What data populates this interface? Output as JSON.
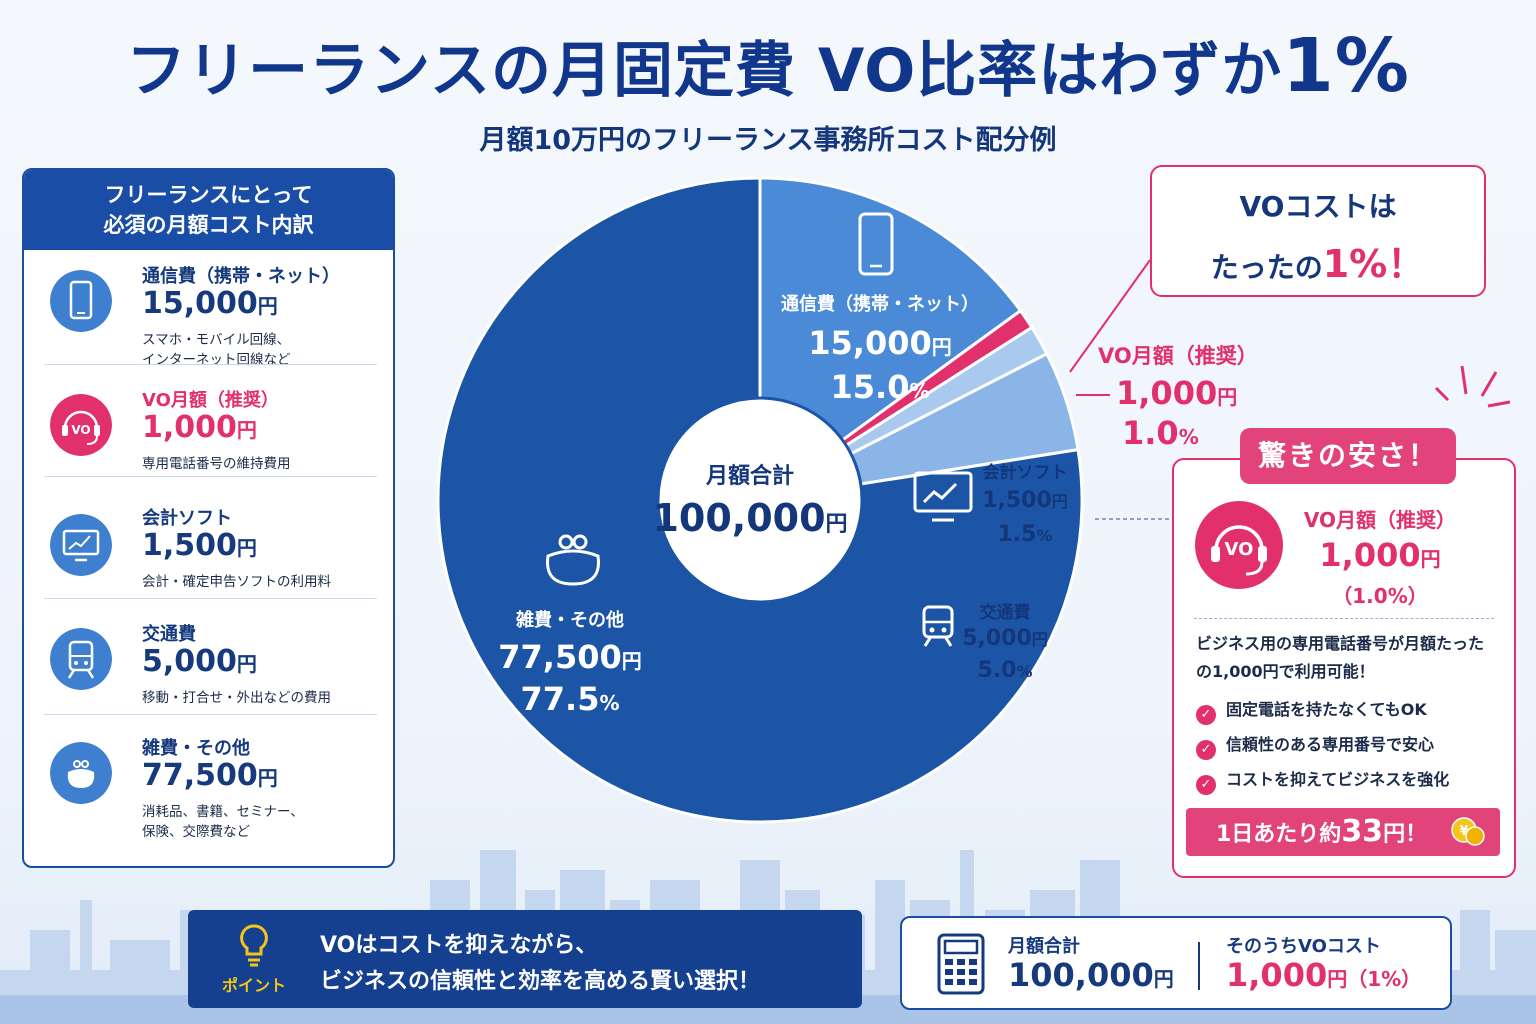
{
  "title": {
    "main": "フリーランスの月固定費 VO比率はわずか",
    "highlight": "1%"
  },
  "subtitle": "月額10万円のフリーランス事務所コスト配分例",
  "left_panel": {
    "header_line1": "フリーランスにとって",
    "header_line2": "必須の月額コスト内訳",
    "items": [
      {
        "name": "通信費（携帯・ネット）",
        "amount": "15,000",
        "unit": "円",
        "desc": "スマホ・モバイル回線、\nインターネット回線など",
        "icon": "smartphone-icon"
      },
      {
        "name": "VO月額（推奨）",
        "amount": "1,000",
        "unit": "円",
        "desc": "専用電話番号の維持費用",
        "icon": "headset-icon"
      },
      {
        "name": "会計ソフト",
        "amount": "1,500",
        "unit": "円",
        "desc": "会計・確定申告ソフトの利用料",
        "icon": "monitor-chart-icon"
      },
      {
        "name": "交通費",
        "amount": "5,000",
        "unit": "円",
        "desc": "移動・打合せ・外出などの費用",
        "icon": "train-icon"
      },
      {
        "name": "雑費・その他",
        "amount": "77,500",
        "unit": "円",
        "desc": "消耗品、書籍、セミナー、\n保険、交際費など",
        "icon": "purse-icon"
      }
    ]
  },
  "center": {
    "label": "月額合計",
    "amount": "100,000",
    "unit": "円"
  },
  "pie_labels": [
    {
      "name": "通信費（携帯・ネット）",
      "amount": "15,000",
      "unit": "円",
      "pct": "15.0",
      "pct_unit": "%"
    },
    {
      "name": "VO月額（推奨）",
      "amount": "1,000",
      "unit": "円",
      "pct": "1.0",
      "pct_unit": "%"
    },
    {
      "name": "会計ソフト",
      "amount": "1,500",
      "unit": "円",
      "pct": "1.5",
      "pct_unit": "%"
    },
    {
      "name": "交通費",
      "amount": "5,000",
      "unit": "円",
      "pct": "5.0",
      "pct_unit": "%"
    },
    {
      "name": "雑費・その他",
      "amount": "77,500",
      "unit": "円",
      "pct": "77.5",
      "pct_unit": "%"
    }
  ],
  "chart_data": {
    "type": "pie",
    "categories": [
      "通信費（携帯・ネット）",
      "VO月額（推奨）",
      "会計ソフト",
      "交通費",
      "雑費・その他"
    ],
    "values": [
      15000,
      1000,
      1500,
      5000,
      77500
    ],
    "percentages": [
      15.0,
      1.0,
      1.5,
      5.0,
      77.5
    ],
    "colors": [
      "#4a8ad6",
      "#e2306c",
      "#a9caee",
      "#8ab5e6",
      "#1c55a6"
    ],
    "title": "月額10万円のフリーランス事務所コスト配分例"
  },
  "callout": {
    "line1": "VOコストは",
    "line2_prefix": "たったの",
    "line2_pct": "1%",
    "line2_suffix": "！"
  },
  "highlight": {
    "tag": "驚きの安さ！",
    "name": "VO月額（推奨）",
    "amount": "1,000",
    "unit": "円",
    "pct": "（1.0%）",
    "desc": "ビジネス用の専用電話番号が月額たったの1,000円で利用可能！",
    "checks": [
      "固定電話を持たなくてもOK",
      "信頼性のある専用番号で安心",
      "コストを抑えてビジネスを強化"
    ],
    "daily_prefix": "1日あたり約",
    "daily_num": "33",
    "daily_suffix": "円！",
    "icon_text": "VO"
  },
  "point": {
    "label": "ポイント",
    "text": "VOはコストを抑えながら、\nビジネスの信頼性と効率を高める賢い選択！"
  },
  "summary": {
    "total_label": "月額合計",
    "total_amount": "100,000",
    "total_unit": "円",
    "vo_label": "そのうちVOコスト",
    "vo_amount": "1,000",
    "vo_unit": "円",
    "vo_pct": "（1%）"
  }
}
